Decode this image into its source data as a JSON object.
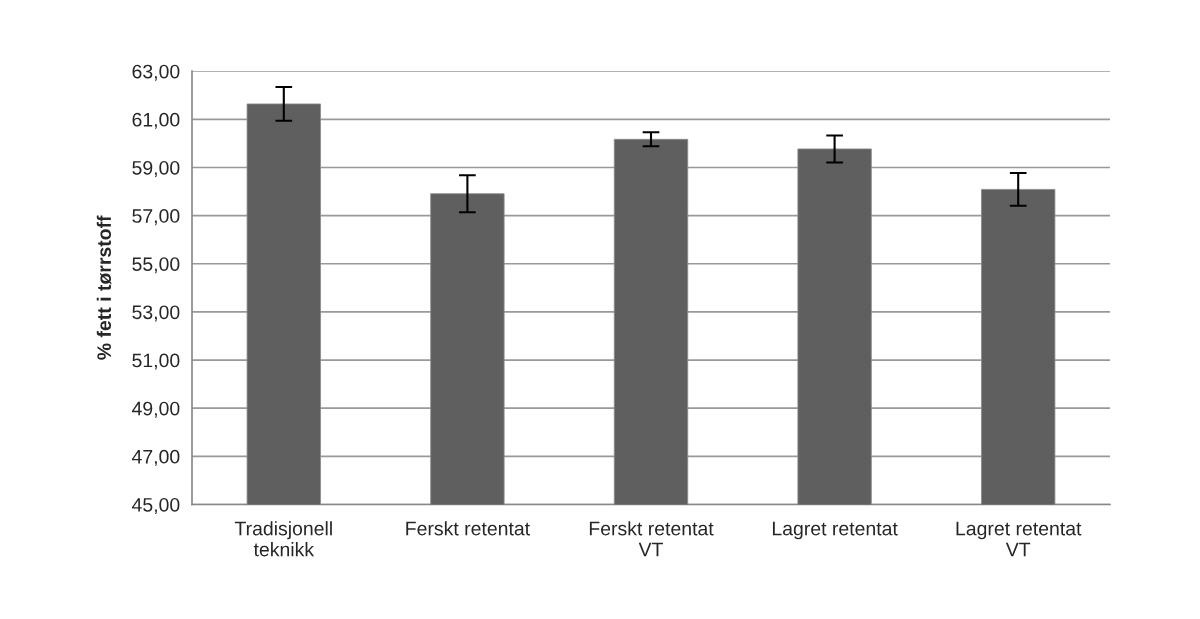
{
  "chart_data": {
    "type": "bar",
    "ylabel": "% fett i tørrstoff",
    "categories": [
      "Tradisjonell\nteknikk",
      "Ferskt retentat",
      "Ferskt retentat\nVT",
      "Lagret retentat",
      "Lagret retentat\nVT"
    ],
    "values": [
      61.64,
      57.91,
      60.17,
      59.77,
      58.09
    ],
    "errors": [
      0.7,
      0.77,
      0.29,
      0.56,
      0.68
    ],
    "color": "#5f5f5f",
    "ylim": [
      45,
      63
    ],
    "yticks": [
      {
        "value": 45,
        "label": "45,00"
      },
      {
        "value": 47,
        "label": "47,00"
      },
      {
        "value": 49,
        "label": "49,00"
      },
      {
        "value": 51,
        "label": "51,00"
      },
      {
        "value": 53,
        "label": "53,00"
      },
      {
        "value": 55,
        "label": "55,00"
      },
      {
        "value": 57,
        "label": "57,00"
      },
      {
        "value": 59,
        "label": "59,00"
      },
      {
        "value": 61,
        "label": "61,00"
      },
      {
        "value": 63,
        "label": "63,00"
      }
    ],
    "grid": "y"
  }
}
